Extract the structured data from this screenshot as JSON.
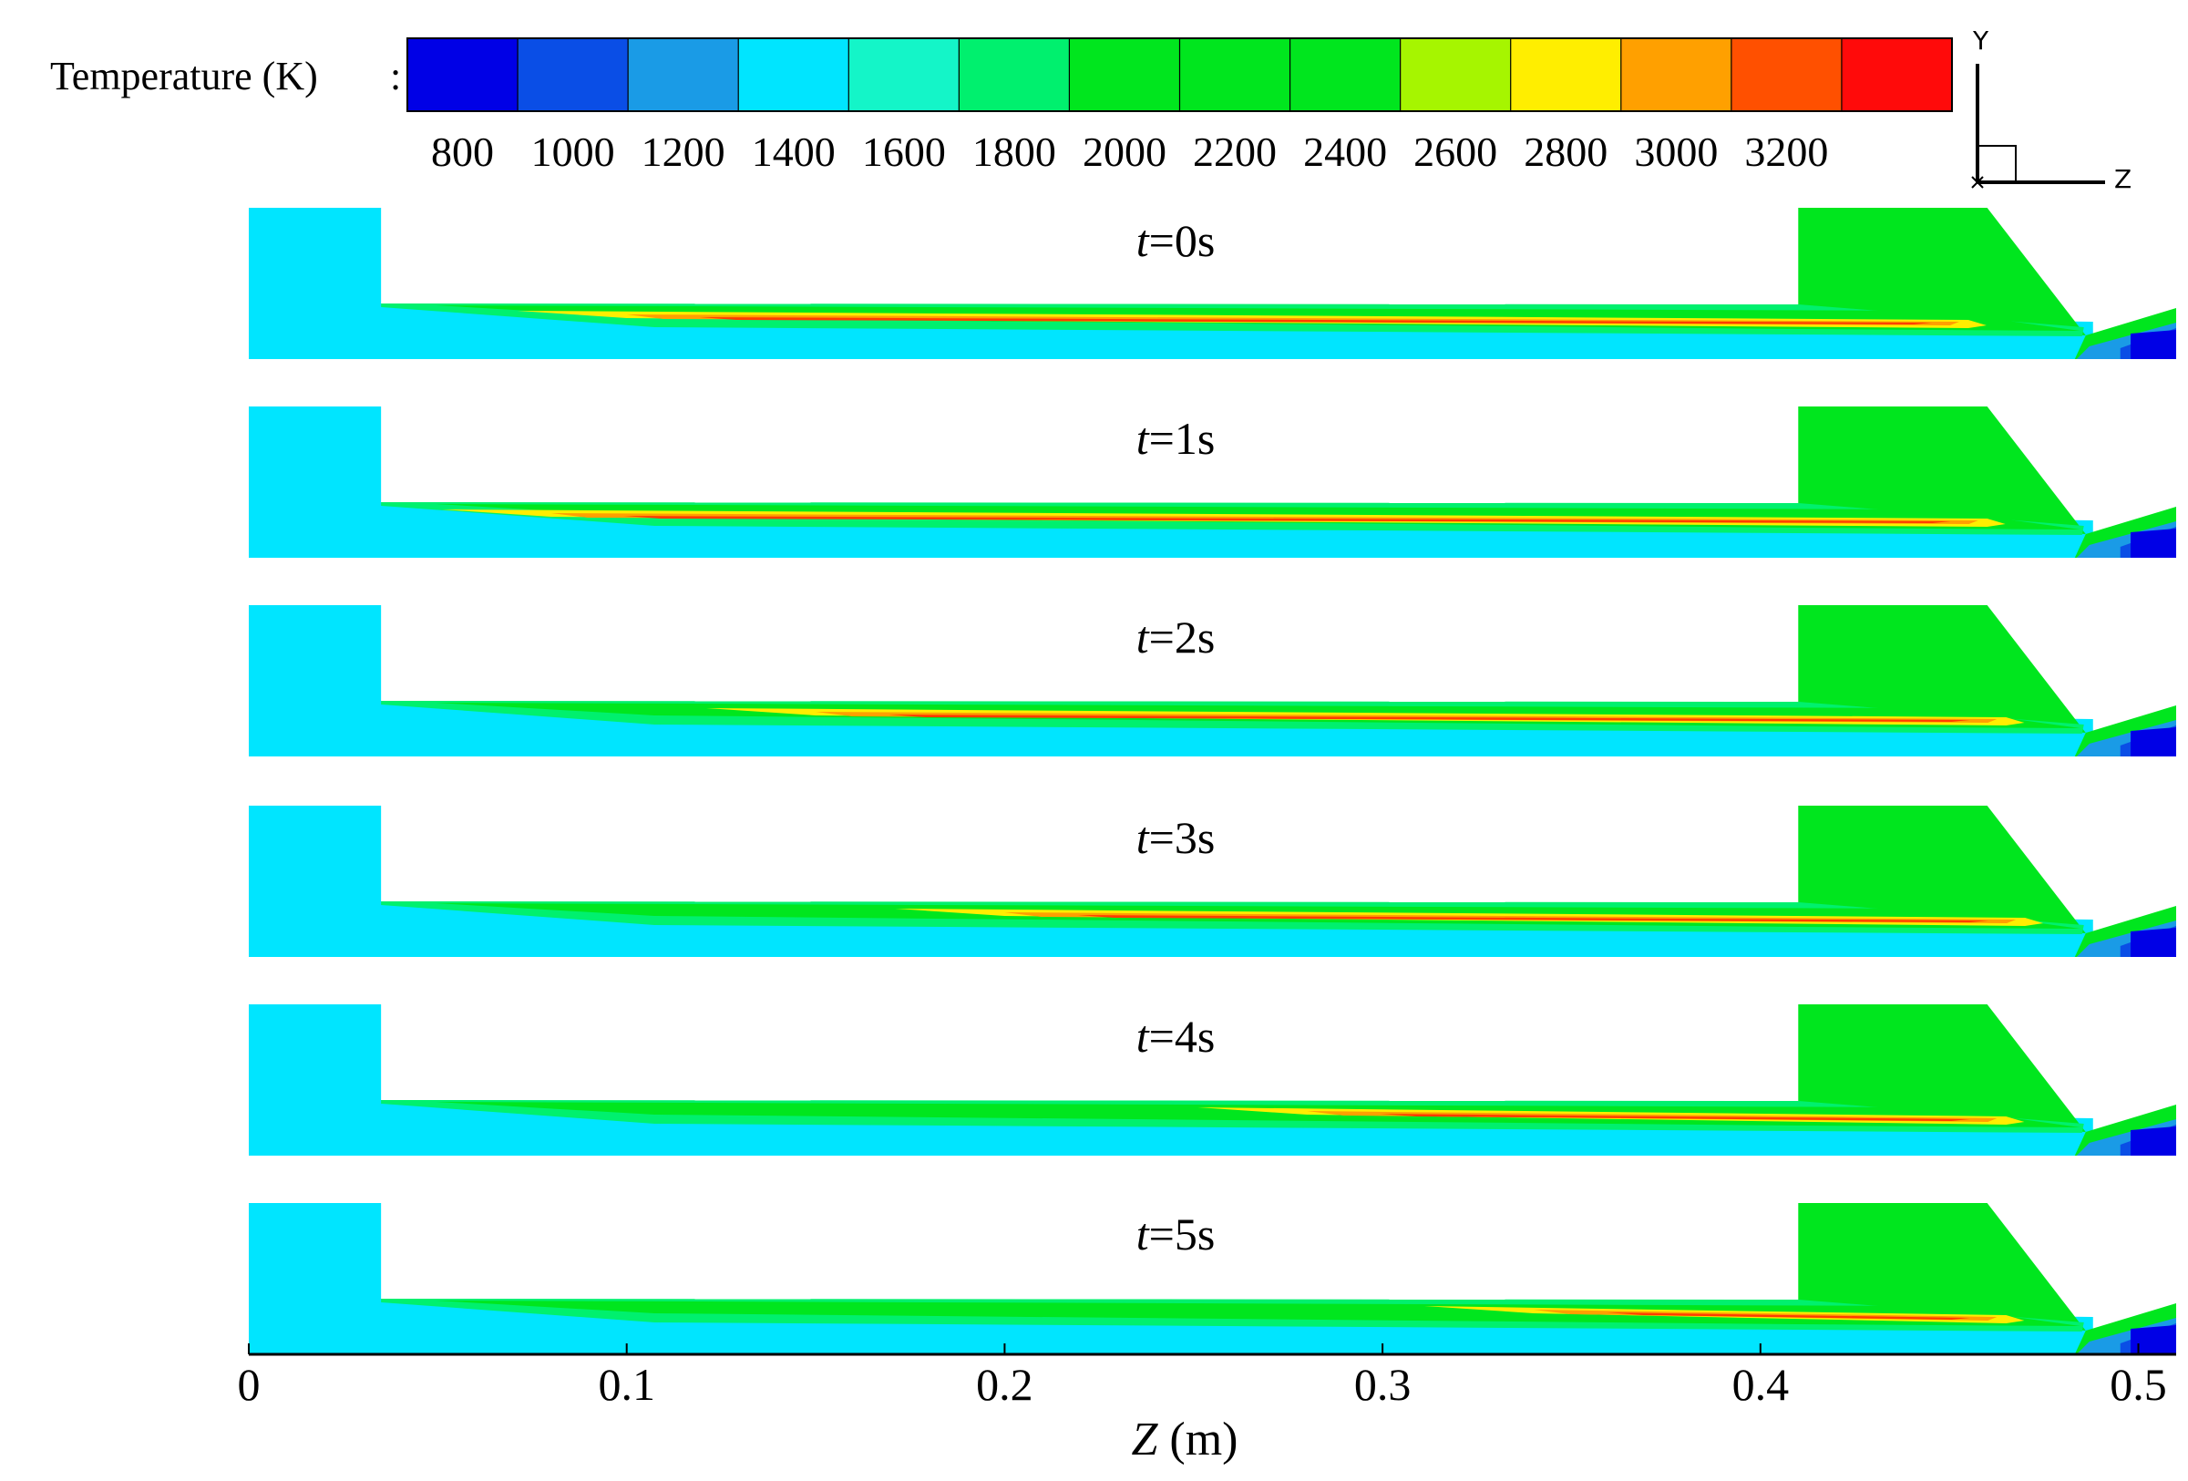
{
  "legend": {
    "title": "Temperature (K)",
    "separator": ":",
    "tick_labels": [
      "800",
      "1000",
      "1200",
      "1400",
      "1600",
      "1800",
      "2000",
      "2200",
      "2400",
      "2600",
      "2800",
      "3000",
      "3200"
    ],
    "colors": [
      "#0000e6",
      "#0a4ee6",
      "#1a9be6",
      "#00e5ff",
      "#14f5c8",
      "#00f06e",
      "#00e61e",
      "#00e61e",
      "#00e61e",
      "#a6f500",
      "#ffee00",
      "#ffa000",
      "#ff5000",
      "#ff0a0a"
    ]
  },
  "axis_triad": {
    "y_label": "Y",
    "z_label": "Z",
    "x_label": "X"
  },
  "panels": [
    {
      "title_var": "t",
      "title_rest": "=0s",
      "peak_start_z": 0.1,
      "peak_end_z": 0.455
    },
    {
      "title_var": "t",
      "title_rest": "=1s",
      "peak_start_z": 0.08,
      "peak_end_z": 0.46
    },
    {
      "title_var": "t",
      "title_rest": "=2s",
      "peak_start_z": 0.15,
      "peak_end_z": 0.465
    },
    {
      "title_var": "t",
      "title_rest": "=3s",
      "peak_start_z": 0.2,
      "peak_end_z": 0.47
    },
    {
      "title_var": "t",
      "title_rest": "=4s",
      "peak_start_z": 0.28,
      "peak_end_z": 0.465
    },
    {
      "title_var": "t",
      "title_rest": "=5s",
      "peak_start_z": 0.34,
      "peak_end_z": 0.465
    }
  ],
  "x_axis": {
    "ticks": [
      "0",
      "0.1",
      "0.2",
      "0.3",
      "0.4",
      "0.5"
    ],
    "label_var": "Z",
    "label_rest": " (m)",
    "range": [
      0,
      0.51
    ]
  },
  "geometry_data_m": {
    "step_z": 0.035,
    "block_end_z": 0.41,
    "slope_end_z": 0.46,
    "throat_z": 0.488
  }
}
